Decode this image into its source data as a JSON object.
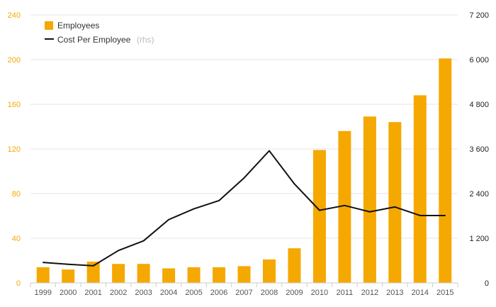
{
  "chart_data": {
    "type": "bar",
    "categories": [
      "1999",
      "2000",
      "2001",
      "2002",
      "2003",
      "2004",
      "2005",
      "2006",
      "2007",
      "2008",
      "2009",
      "2010",
      "2011",
      "2012",
      "2013",
      "2014",
      "2015"
    ],
    "series": [
      {
        "name": "Employees",
        "type": "bar",
        "axis": "left",
        "color": "#F5A800",
        "values": [
          14,
          12,
          19,
          17,
          17,
          13,
          14,
          14,
          15,
          21,
          31,
          119,
          136,
          149,
          144,
          168,
          201
        ]
      },
      {
        "name": "Cost Per Employee",
        "type": "line",
        "axis": "right",
        "color": "#111111",
        "values": [
          550,
          500,
          460,
          870,
          1130,
          1700,
          1990,
          2210,
          2820,
          3550,
          2660,
          1950,
          2080,
          1910,
          2040,
          1810,
          1810
        ]
      }
    ],
    "legend": [
      {
        "label": "Employees",
        "note": ""
      },
      {
        "label": "Cost Per Employee",
        "note": "(rhs)"
      }
    ],
    "legend_position": "top-left",
    "y_left": {
      "min": 0,
      "max": 240,
      "ticks": [
        "0",
        "40",
        "80",
        "120",
        "160",
        "200",
        "240"
      ],
      "color": "#F5A800"
    },
    "y_right": {
      "min": 0,
      "max": 7200,
      "ticks": [
        "0",
        "1 200",
        "2 400",
        "3 600",
        "4 800",
        "6 000",
        "7 200"
      ],
      "color": "#222222"
    },
    "grid": true,
    "title": "",
    "xlabel": "",
    "ylabel": ""
  }
}
